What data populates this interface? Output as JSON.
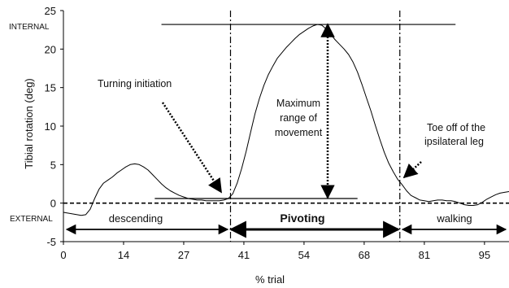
{
  "chart_data": {
    "type": "line",
    "xlabel": "% trial",
    "ylabel": "Tibial rotation (deg)",
    "ylim": [
      -5,
      25
    ],
    "xlim": [
      0,
      100
    ],
    "xtick_values": [
      0,
      13.5,
      27,
      40.5,
      54,
      67.5,
      81,
      94.5
    ],
    "xtick_labels": [
      "0",
      "14",
      "27",
      "41",
      "54",
      "68",
      "81",
      "95"
    ],
    "ytick_values": [
      -5,
      0,
      5,
      10,
      15,
      20,
      25
    ],
    "ytick_labels": [
      "-5",
      "0",
      "5",
      "10",
      "15",
      "20",
      "25"
    ],
    "grid": false,
    "series": [
      {
        "x": [
          0,
          2,
          4,
          5,
          6,
          7,
          8,
          9,
          10,
          11,
          12,
          13,
          14,
          15,
          16,
          17,
          18,
          19,
          20,
          21,
          22,
          23,
          24,
          25,
          26,
          27,
          28,
          29,
          30,
          31,
          32,
          33,
          34,
          35,
          36,
          37,
          38,
          39,
          40,
          41,
          42,
          43,
          44,
          45,
          46,
          47,
          48,
          49,
          50,
          51,
          52,
          53,
          54,
          55,
          56,
          57,
          58,
          59,
          60,
          61,
          62,
          63,
          64,
          65,
          66,
          67,
          68,
          69,
          70,
          71,
          72,
          73,
          74,
          75,
          76,
          77,
          78,
          79,
          80,
          81,
          82,
          83,
          84,
          85,
          86,
          87,
          88,
          89,
          90,
          91,
          92,
          93,
          94,
          95,
          96,
          97,
          98,
          99,
          100
        ],
        "y": [
          -1.2,
          -1.4,
          -1.6,
          -1.5,
          -0.8,
          0.6,
          1.8,
          2.6,
          3.0,
          3.4,
          3.9,
          4.3,
          4.7,
          5.0,
          5.1,
          5.0,
          4.7,
          4.3,
          3.7,
          3.1,
          2.5,
          2.0,
          1.6,
          1.3,
          1.0,
          0.8,
          0.6,
          0.5,
          0.4,
          0.4,
          0.3,
          0.3,
          0.3,
          0.3,
          0.4,
          0.6,
          1.2,
          2.6,
          4.5,
          6.7,
          9.2,
          11.6,
          13.6,
          15.3,
          16.7,
          17.8,
          18.8,
          19.5,
          20.2,
          20.8,
          21.4,
          21.9,
          22.3,
          22.7,
          23.0,
          23.2,
          23.1,
          22.6,
          21.9,
          21.2,
          20.6,
          20.0,
          19.3,
          18.3,
          17.0,
          15.4,
          13.7,
          12.0,
          10.1,
          8.3,
          6.6,
          5.2,
          4.1,
          3.1,
          2.4,
          1.6,
          1.0,
          0.7,
          0.4,
          0.3,
          0.2,
          0.3,
          0.4,
          0.4,
          0.3,
          0.3,
          0.2,
          0.0,
          -0.2,
          -0.3,
          -0.3,
          -0.2,
          0.1,
          0.5,
          0.8,
          1.1,
          1.3,
          1.4,
          1.5
        ]
      }
    ],
    "reference_lines": {
      "max_line": {
        "y": 23.2,
        "x": [
          22,
          88
        ]
      },
      "min_line": {
        "y": 0.6,
        "x": [
          20.5,
          66
        ]
      },
      "zero_line": {
        "y": 0
      },
      "phase_bounds_x": [
        37.5,
        75.5
      ]
    },
    "side_labels": {
      "internal": "INTERNAL",
      "external": "EXTERNAL"
    },
    "annotations": {
      "turning": "Turning initiation",
      "max_range": [
        "Maximum",
        "range of",
        "movement"
      ],
      "toe_off": [
        "Toe off of the",
        "ipsilateral leg"
      ]
    },
    "phases": {
      "descending": "descending",
      "pivoting": "Pivoting",
      "walking": "walking"
    }
  }
}
